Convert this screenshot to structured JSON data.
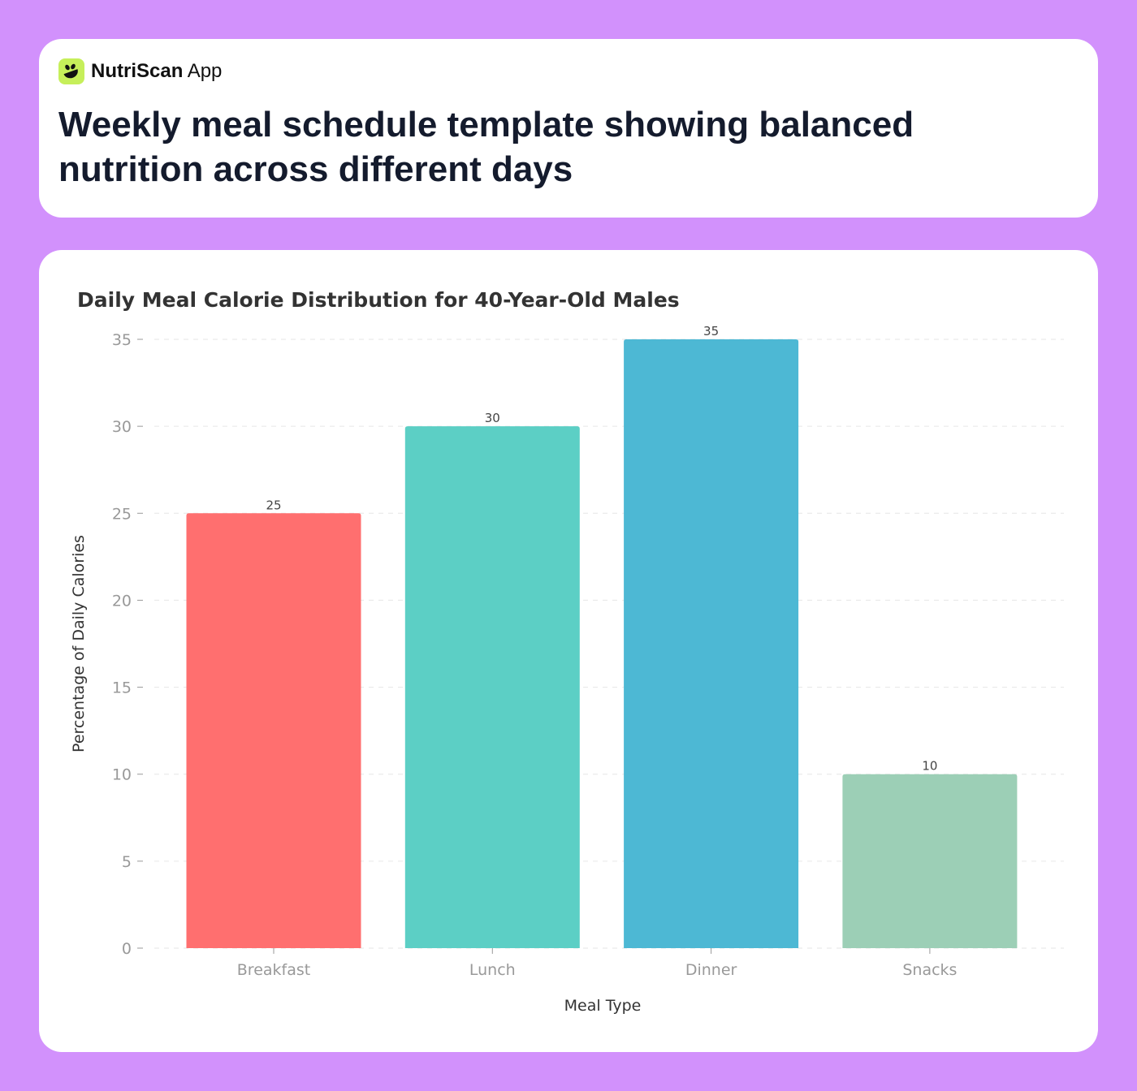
{
  "brand": {
    "name_bold": "NutriScan",
    "name_light": "App",
    "logo_icon": "bowl-leaf-icon",
    "logo_color": "#c6ef5a"
  },
  "header": {
    "title": "Weekly meal schedule template showing balanced nutrition across different days"
  },
  "chart_data": {
    "type": "bar",
    "title": "Daily Meal Calorie Distribution for 40-Year-Old Males",
    "xlabel": "Meal Type",
    "ylabel": "Percentage of Daily Calories",
    "categories": [
      "Breakfast",
      "Lunch",
      "Dinner",
      "Snacks"
    ],
    "values": [
      25,
      30,
      35,
      10
    ],
    "data_labels": [
      "25",
      "30",
      "35",
      "10"
    ],
    "colors": [
      "#ff6f6f",
      "#5ccfc5",
      "#4db8d4",
      "#9ccfb6"
    ],
    "ylim": [
      0,
      35
    ],
    "yticks": [
      0,
      5,
      10,
      15,
      20,
      25,
      30,
      35
    ],
    "grid": true,
    "legend": "none"
  }
}
